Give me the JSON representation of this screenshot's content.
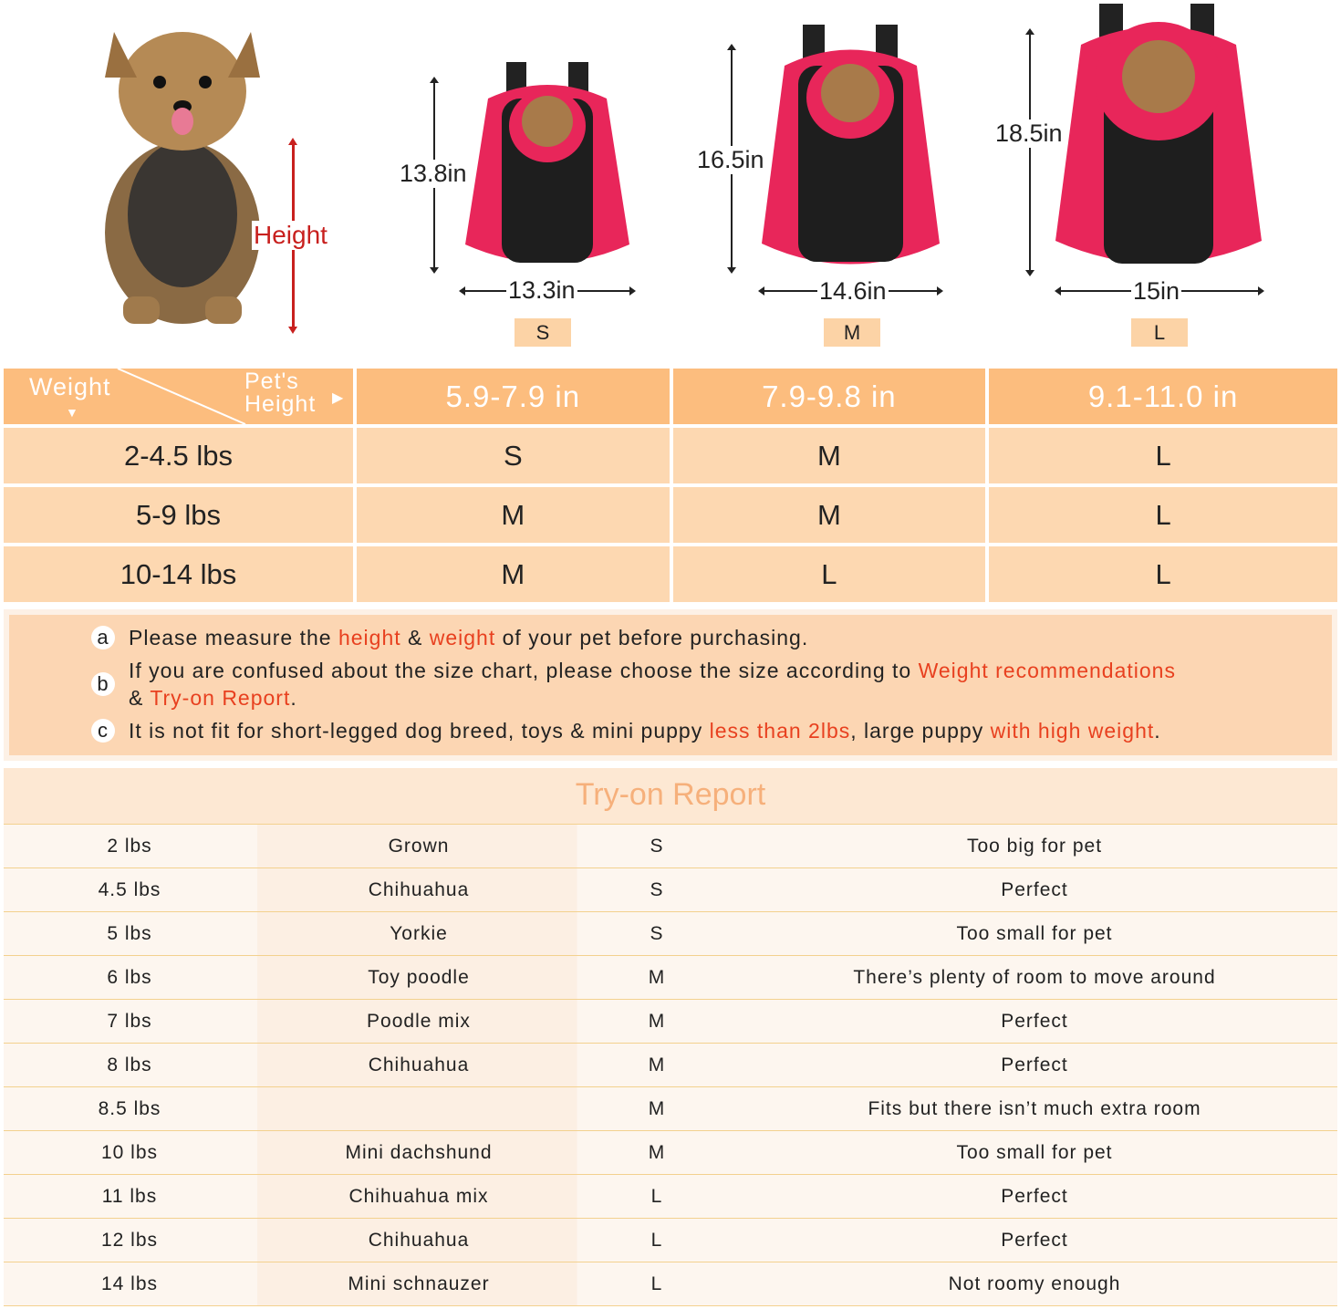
{
  "top": {
    "height_label": "Height",
    "sizes": [
      {
        "height": "13.8in",
        "width": "13.3in",
        "size": "S"
      },
      {
        "height": "16.5in",
        "width": "14.6in",
        "size": "M"
      },
      {
        "height": "18.5in",
        "width": "15in",
        "size": "L"
      }
    ],
    "colors": {
      "backpack": "#e8265a",
      "accent_red": "#c8201e"
    }
  },
  "size_chart": {
    "corner_weight": "Weight",
    "corner_height": "Pet's Height",
    "columns": [
      "5.9-7.9 in",
      "7.9-9.8 in",
      "9.1-11.0 in"
    ],
    "rows": [
      {
        "weight": "2-4.5 lbs",
        "sizes": [
          "S",
          "M",
          "L"
        ]
      },
      {
        "weight": "5-9 lbs",
        "sizes": [
          "M",
          "M",
          "L"
        ]
      },
      {
        "weight": "10-14 lbs",
        "sizes": [
          "M",
          "L",
          "L"
        ]
      }
    ],
    "colors": {
      "header": "#fcbd7e",
      "cell": "#fdd8b1"
    }
  },
  "notes": {
    "a": {
      "marker": "a",
      "t1": "Please measure the ",
      "h1": "height",
      "t2": " & ",
      "h2": "weight",
      "t3": " of your pet before purchasing."
    },
    "b": {
      "marker": "b",
      "t1": "If you are confused about the size chart, please choose the size according to ",
      "h1": "Weight recommendations",
      "t2": "& ",
      "h2": "Try-on Report",
      "t3": "."
    },
    "c": {
      "marker": "c",
      "t1": "It is not fit for short-legged dog breed, toys & mini puppy ",
      "h1": "less than 2lbs",
      "t2": ", large puppy ",
      "h2": "with high weight",
      "t3": "."
    }
  },
  "report": {
    "title": "Try-on Report",
    "rows": [
      [
        "2 lbs",
        "Grown",
        "S",
        "Too big for pet"
      ],
      [
        "4.5 lbs",
        "Chihuahua",
        "S",
        "Perfect"
      ],
      [
        "5 lbs",
        "Yorkie",
        "S",
        "Too small for pet"
      ],
      [
        "6 lbs",
        "Toy poodle",
        "M",
        "There’s plenty of room to move around"
      ],
      [
        "7 lbs",
        "Poodle mix",
        "M",
        "Perfect"
      ],
      [
        "8 lbs",
        "Chihuahua",
        "M",
        "Perfect"
      ],
      [
        "8.5 lbs",
        "",
        "M",
        "Fits but there isn’t much extra room"
      ],
      [
        "10 lbs",
        "Mini dachshund",
        "M",
        "Too small for pet"
      ],
      [
        "11 lbs",
        "Chihuahua mix",
        "L",
        "Perfect"
      ],
      [
        "12 lbs",
        "Chihuahua",
        "L",
        "Perfect"
      ],
      [
        "14 lbs",
        "Mini schnauzer",
        "L",
        "Not roomy enough"
      ]
    ]
  }
}
